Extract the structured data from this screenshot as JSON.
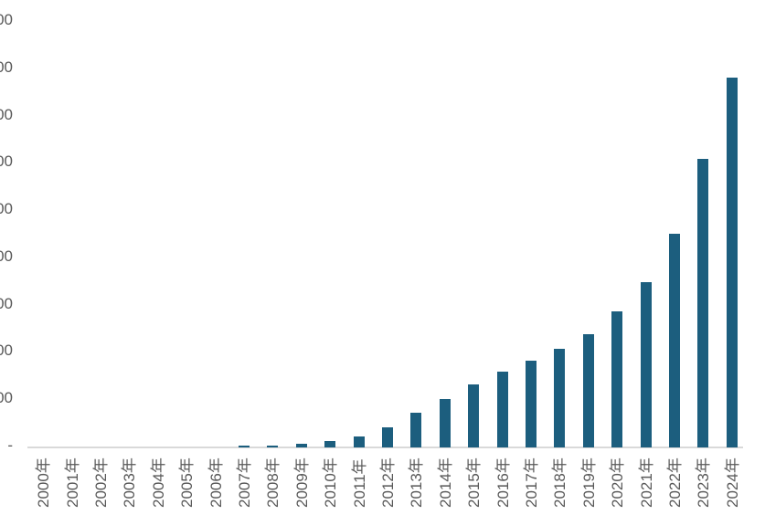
{
  "chart_data": {
    "type": "bar",
    "title": "",
    "categories": [
      "2000年",
      "2001年",
      "2002年",
      "2003年",
      "2004年",
      "2005年",
      "2006年",
      "2007年",
      "2008年",
      "2009年",
      "2010年",
      "2011年",
      "2012年",
      "2013年",
      "2014年",
      "2015年",
      "2016年",
      "2017年",
      "2018年",
      "2019年",
      "2020年",
      "2021年",
      "2022年",
      "2023年",
      "2024年"
    ],
    "values": [
      0,
      0,
      0,
      0,
      0,
      0,
      0,
      3,
      3,
      8,
      14,
      23,
      42,
      73,
      102,
      134,
      160,
      184,
      209,
      239,
      287,
      350,
      451,
      610,
      783
    ],
    "xlabel": "",
    "ylabel": "",
    "ylim": [
      0,
      900
    ],
    "y_tick_step": 100,
    "y_tick_labels_visible_top_to_bottom": [
      "00",
      "00",
      "00",
      "00",
      "00",
      "00",
      "00",
      "00",
      "00",
      "-"
    ],
    "y_tick_labels_note": "y-axis labels are clipped by the left image edge; only the trailing zeros and the zero dash are visible",
    "grid": false,
    "legend": false,
    "bar_color": "#1c5e7e",
    "axis_line_color": "#d9d9d9",
    "label_color": "#595959",
    "background_color": "#ffffff"
  }
}
